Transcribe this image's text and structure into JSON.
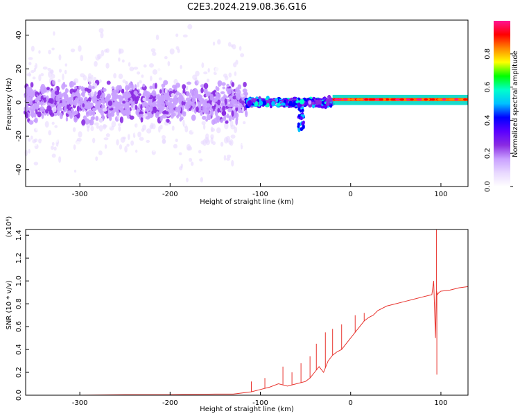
{
  "title": "C2E3.2024.219.08.36.G16",
  "chart_data": [
    {
      "type": "heatmap",
      "title": "",
      "xlabel": "Height of straight line (km)",
      "ylabel": "Frequency (Hz)",
      "xlim": [
        -360,
        130
      ],
      "ylim": [
        -50,
        49
      ],
      "xticks": [
        -300,
        -200,
        -100,
        0,
        100
      ],
      "yticks": [
        40,
        20,
        0,
        -20,
        -40
      ],
      "colorbar": {
        "label": "Normalized spectral amplitude",
        "range": [
          0.0,
          1.0
        ],
        "ticks": [
          "0.0",
          "0.2",
          "0.4",
          "0.6",
          "0.8"
        ],
        "colormap": [
          "#ffffff",
          "#e8d8ff",
          "#c9a0ff",
          "#8a2be2",
          "#5a00ff",
          "#0000ff",
          "#00c0ff",
          "#00ffcc",
          "#00ff00",
          "#ffff00",
          "#ff8800",
          "#ff0000",
          "#ff1493"
        ]
      },
      "description_bands": [
        {
          "x_range": [
            -360,
            -115
          ],
          "center_freq": 0,
          "spread_hz": 45,
          "peak_amplitude": 0.15
        },
        {
          "x_range": [
            -115,
            -20
          ],
          "center_freq": 0,
          "spread_hz": 4,
          "peak_amplitude": 0.5
        },
        {
          "x_range": [
            -20,
            130
          ],
          "center_freq": 1.5,
          "spread_hz": 2,
          "peak_amplitude": 0.85
        }
      ]
    },
    {
      "type": "line",
      "title": "",
      "xlabel": "Height of straight line (km)",
      "ylabel": "SNR (10 * v/v)",
      "scale_label": "(x10⁴)",
      "xlim": [
        -360,
        130
      ],
      "ylim": [
        0.0,
        1.45
      ],
      "xticks": [
        -300,
        -200,
        -100,
        0,
        100
      ],
      "yticks": [
        "0.0",
        "0.2",
        "0.4",
        "0.6",
        "0.8",
        "1.0",
        "1.2",
        "1.4"
      ],
      "color": "#e8342e",
      "series": [
        {
          "x": [
            -360,
            -300,
            -250,
            -200,
            -150,
            -130,
            -120,
            -110,
            -100,
            -90,
            -80,
            -70,
            -60,
            -50,
            -45,
            -40,
            -35,
            -30,
            -25,
            -20,
            -15,
            -10,
            -5,
            0,
            5,
            10,
            15,
            20,
            25,
            30,
            40,
            50,
            60,
            70,
            80,
            85,
            90,
            92,
            94,
            95,
            96,
            98,
            100,
            110,
            120,
            130
          ],
          "y": [
            0.0,
            0.0,
            0.005,
            0.005,
            0.01,
            0.01,
            0.02,
            0.03,
            0.05,
            0.07,
            0.1,
            0.08,
            0.1,
            0.12,
            0.15,
            0.2,
            0.25,
            0.2,
            0.3,
            0.35,
            0.38,
            0.4,
            0.45,
            0.5,
            0.55,
            0.6,
            0.65,
            0.68,
            0.7,
            0.74,
            0.78,
            0.8,
            0.82,
            0.84,
            0.86,
            0.87,
            0.88,
            1.0,
            0.5,
            0.92,
            0.88,
            0.9,
            0.91,
            0.92,
            0.94,
            0.95
          ]
        }
      ],
      "spikes": [
        {
          "x": -110,
          "top": 0.12
        },
        {
          "x": -95,
          "top": 0.15
        },
        {
          "x": -75,
          "top": 0.25
        },
        {
          "x": -65,
          "top": 0.2
        },
        {
          "x": -55,
          "top": 0.28
        },
        {
          "x": -45,
          "top": 0.34
        },
        {
          "x": -38,
          "top": 0.45
        },
        {
          "x": -28,
          "top": 0.55
        },
        {
          "x": -20,
          "top": 0.58
        },
        {
          "x": -10,
          "top": 0.62
        },
        {
          "x": 5,
          "top": 0.7
        },
        {
          "x": 15,
          "top": 0.72
        },
        {
          "x": 95,
          "top": 1.45
        },
        {
          "x": 95.5,
          "top": 0.18
        }
      ]
    }
  ]
}
